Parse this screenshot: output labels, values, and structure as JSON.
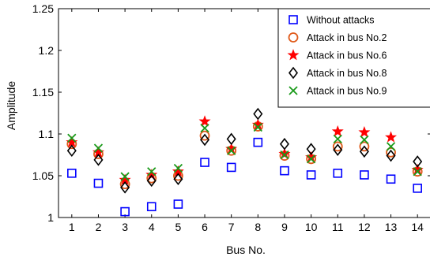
{
  "chart_data": {
    "type": "scatter",
    "xlabel": "Bus No.",
    "ylabel": "Amplitude",
    "x": [
      1,
      2,
      3,
      4,
      5,
      6,
      7,
      8,
      9,
      10,
      11,
      12,
      13,
      14
    ],
    "xlim": [
      0.5,
      14.5
    ],
    "ylim": [
      1,
      1.25
    ],
    "yticks": [
      1,
      1.05,
      1.1,
      1.15,
      1.2,
      1.25
    ],
    "ytick_labels": [
      "1",
      "1.05",
      "1.1",
      "1.15",
      "1.2",
      "1.25"
    ],
    "xtick_labels": [
      "1",
      "2",
      "3",
      "4",
      "5",
      "6",
      "7",
      "8",
      "9",
      "10",
      "11",
      "12",
      "13",
      "14"
    ],
    "grid": false,
    "legend_position": "top-right",
    "series": [
      {
        "name": "Without attacks",
        "marker": "square",
        "color": "#0000ff",
        "values": [
          1.053,
          1.041,
          1.007,
          1.013,
          1.016,
          1.066,
          1.06,
          1.09,
          1.056,
          1.051,
          1.053,
          1.051,
          1.046,
          1.035
        ]
      },
      {
        "name": "Attack in bus No.2",
        "marker": "circle",
        "color": "#e05a1a",
        "values": [
          1.088,
          1.076,
          1.04,
          1.047,
          1.05,
          1.098,
          1.08,
          1.109,
          1.074,
          1.07,
          1.085,
          1.085,
          1.078,
          1.055
        ]
      },
      {
        "name": "Attack in bus No.6",
        "marker": "star",
        "color": "#ff0000",
        "values": [
          1.09,
          1.078,
          1.045,
          1.051,
          1.055,
          1.115,
          1.082,
          1.111,
          1.076,
          1.072,
          1.103,
          1.102,
          1.096,
          1.057
        ]
      },
      {
        "name": "Attack in bus No.8",
        "marker": "diamond",
        "color": "#000000",
        "values": [
          1.08,
          1.069,
          1.036,
          1.044,
          1.046,
          1.093,
          1.094,
          1.124,
          1.088,
          1.082,
          1.081,
          1.079,
          1.074,
          1.067
        ]
      },
      {
        "name": "Attack in bus No.9",
        "marker": "x",
        "color": "#1a9a1a",
        "values": [
          1.095,
          1.083,
          1.049,
          1.055,
          1.059,
          1.107,
          1.08,
          1.108,
          1.075,
          1.07,
          1.094,
          1.093,
          1.085,
          1.055
        ]
      }
    ]
  }
}
